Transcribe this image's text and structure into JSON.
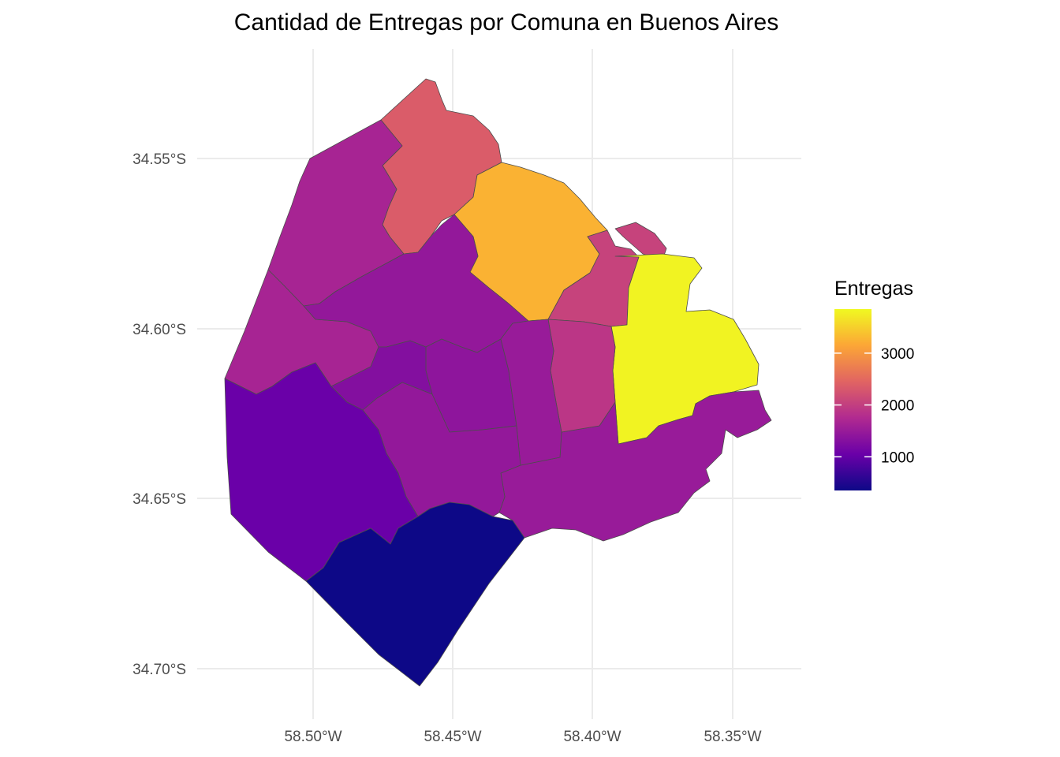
{
  "title": "Cantidad de Entregas por Comuna en Buenos Aires",
  "axes": {
    "y_ticks": [
      "34.55°S",
      "34.60°S",
      "34.65°S",
      "34.70°S"
    ],
    "x_ticks": [
      "58.50°W",
      "58.45°W",
      "58.40°W",
      "58.35°W"
    ]
  },
  "legend": {
    "title": "Entregas",
    "ticks": [
      "1000",
      "2000",
      "3000"
    ],
    "min": 350,
    "max": 3850,
    "palette": [
      "#0d0887",
      "#6a00a8",
      "#b12a90",
      "#e16462",
      "#fca636",
      "#f0f921"
    ]
  },
  "chart_data": {
    "type": "choropleth",
    "value_label": "Entregas",
    "regions": [
      {
        "id": "comuna-1",
        "value": 3800
      },
      {
        "id": "comuna-2",
        "value": 2050
      },
      {
        "id": "comuna-3",
        "value": 1900
      },
      {
        "id": "comuna-4",
        "value": 1500
      },
      {
        "id": "comuna-5",
        "value": 1400
      },
      {
        "id": "comuna-6",
        "value": 1500
      },
      {
        "id": "comuna-7",
        "value": 1450
      },
      {
        "id": "comuna-8",
        "value": 350
      },
      {
        "id": "comuna-9",
        "value": 1050
      },
      {
        "id": "comuna-10",
        "value": 1300
      },
      {
        "id": "comuna-11",
        "value": 1450
      },
      {
        "id": "comuna-12",
        "value": 1650
      },
      {
        "id": "comuna-13",
        "value": 2350
      },
      {
        "id": "comuna-14",
        "value": 3250
      },
      {
        "id": "comuna-15",
        "value": 1650
      }
    ]
  }
}
